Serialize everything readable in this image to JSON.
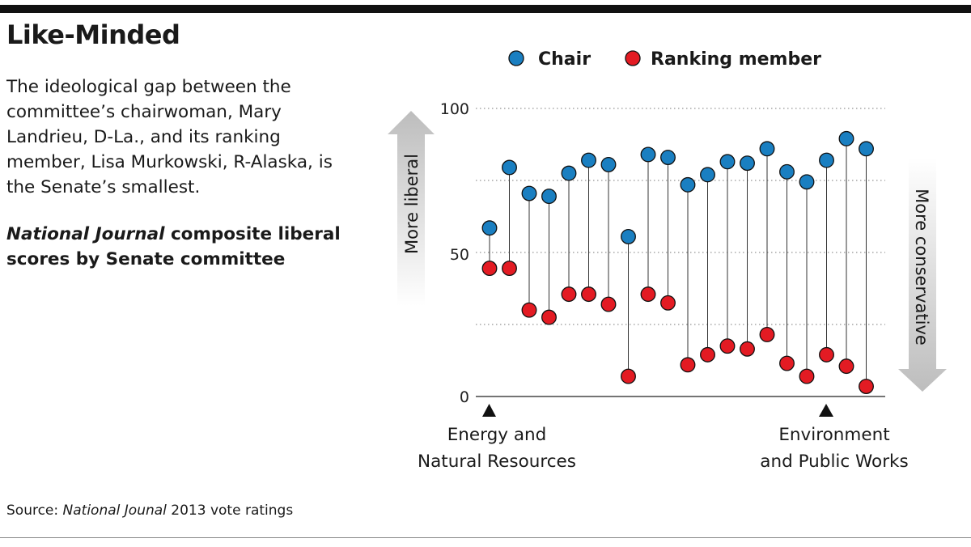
{
  "headline": "Like-Minded",
  "description": "The ideological gap between the committee’s chairwoman, Mary Landrieu, D-La., and its ranking member, Lisa Murkowski, R-Alaska, is the Senate’s smallest.",
  "subhead": {
    "italic": "National Journal",
    "rest": " composite liberal scores by Senate committee"
  },
  "source": {
    "prefix": "Source: ",
    "italic": "National Jounal",
    "suffix": " 2013 vote ratings"
  },
  "colors": {
    "chair": "#1a7fc1",
    "ranking": "#e31b23",
    "arrow": "#c8c8c8"
  },
  "chart_data": {
    "type": "scatter",
    "legend": [
      {
        "label": "Chair",
        "series": "chair"
      },
      {
        "label": "Ranking member",
        "series": "ranking"
      }
    ],
    "y_ticks": [
      "100",
      "50",
      "0"
    ],
    "ylim": [
      0,
      100
    ],
    "grid": "dotted",
    "arrow_up_label": "More liberal",
    "arrow_down_label": "More conservative",
    "series": [
      {
        "name": "Chair",
        "values": [
          58.5,
          79.5,
          70.5,
          69.5,
          77.5,
          82,
          80.5,
          55.5,
          84,
          83,
          73.5,
          77,
          81.5,
          81,
          86,
          78,
          74.5,
          82,
          89.5,
          86
        ]
      },
      {
        "name": "Ranking member",
        "values": [
          44.5,
          44.5,
          30,
          27.5,
          35.5,
          35.5,
          32,
          7,
          35.5,
          32.5,
          11,
          14.5,
          17.5,
          16.5,
          21.5,
          11.5,
          7,
          14.5,
          10.5,
          3.5
        ]
      }
    ],
    "annotations": [
      {
        "index": 0,
        "lines": [
          "Energy and",
          "Natural Resources"
        ]
      },
      {
        "index": 17,
        "lines": [
          "Environment",
          "and Public Works"
        ]
      }
    ]
  }
}
